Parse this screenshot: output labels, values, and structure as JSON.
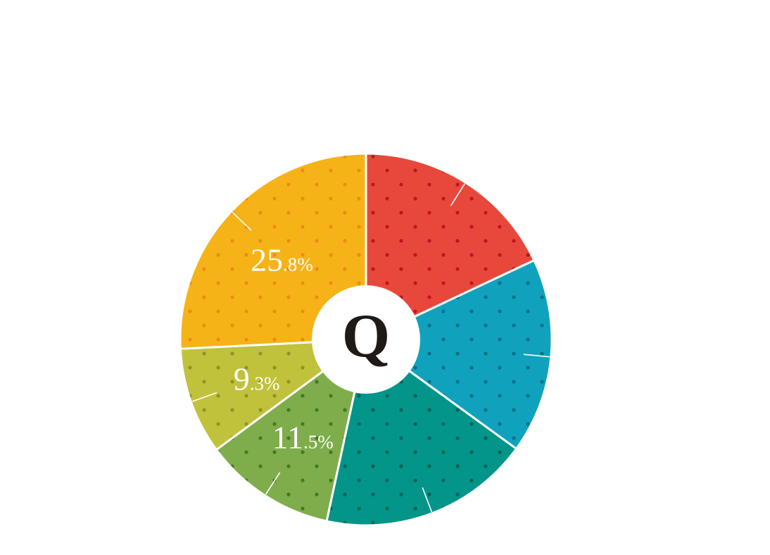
{
  "chart_data": {
    "type": "pie",
    "style": "donut",
    "center_label": "Q",
    "start": "12 o'clock",
    "direction": "clockwise",
    "slices": [
      {
        "value": 18.0,
        "label_whole": "",
        "label_fraction": "",
        "color": "#e8483b",
        "dot_color": "#c3131d"
      },
      {
        "value": 17.0,
        "label_whole": "",
        "label_fraction": "",
        "color": "#10a2bd",
        "dot_color": "#0a6f86"
      },
      {
        "value": 18.4,
        "label_whole": "",
        "label_fraction": "",
        "color": "#039589",
        "dot_color": "#026158"
      },
      {
        "value": 11.5,
        "label_whole": "11",
        "label_fraction": ".5%",
        "color": "#7fad4b",
        "dot_color": "#3f7a24"
      },
      {
        "value": 9.3,
        "label_whole": "9",
        "label_fraction": ".3%",
        "color": "#c0c23b",
        "dot_color": "#8e9420"
      },
      {
        "value": 25.8,
        "label_whole": "25",
        "label_fraction": ".8%",
        "color": "#f6b318",
        "dot_color": "#ec8b10"
      }
    ]
  }
}
